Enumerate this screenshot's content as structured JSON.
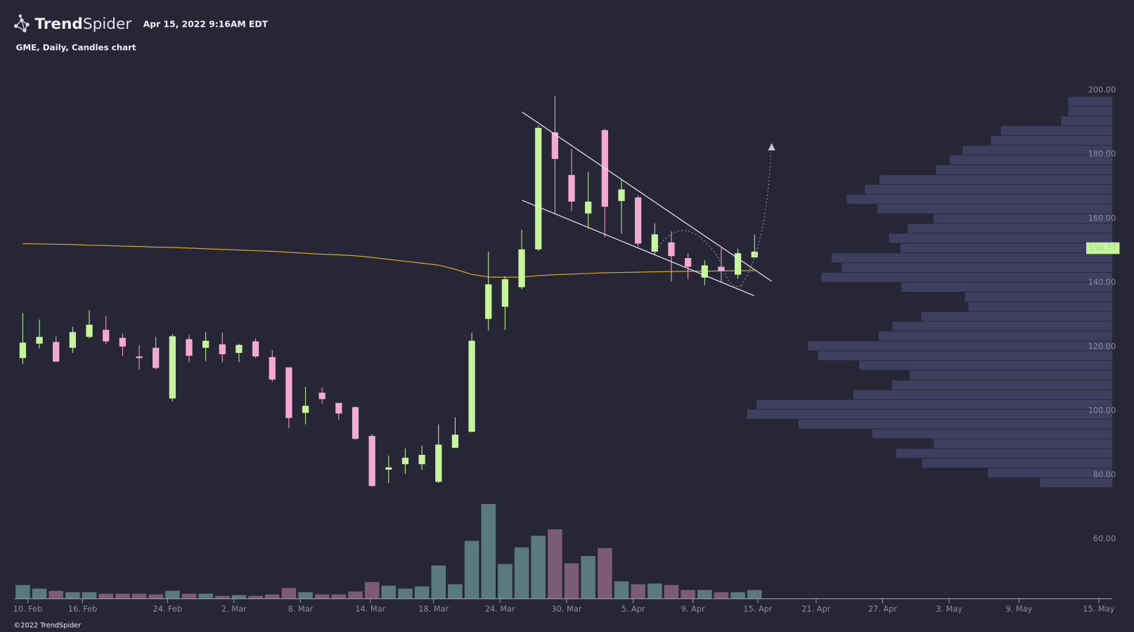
{
  "header": {
    "brand_bold": "Trend",
    "brand_light": "Spider",
    "timestamp": "Apr 15, 2022 9:16AM EDT",
    "chart_label": "GME, Daily, Candles chart",
    "copyright": "©2022 TrendSpider"
  },
  "chart_data": {
    "type": "candlestick",
    "open": [
      116.5,
      121.0,
      121.5,
      119.7,
      123.1,
      125.3,
      122.8,
      117.0,
      119.7,
      103.9,
      122.4,
      119.7,
      120.8,
      118.1,
      121.7,
      116.8,
      113.6,
      99.4,
      105.7,
      102.5,
      101.2,
      92.2,
      81.7,
      83.4,
      83.4,
      77.9,
      88.5,
      93.5,
      128.7,
      132.5,
      138.6,
      150.4,
      186.9,
      173.6,
      161.6,
      187.6,
      165.5,
      166.6,
      149.7,
      152.6,
      147.7,
      141.6,
      145.0,
      142.5,
      147.9
    ],
    "high": [
      130.5,
      128.5,
      123.3,
      126.2,
      131.4,
      129.6,
      124.2,
      120.6,
      123.1,
      124.0,
      123.7,
      124.6,
      124.4,
      121.0,
      122.6,
      119.0,
      113.6,
      107.5,
      107.3,
      102.5,
      101.4,
      92.8,
      86.1,
      88.3,
      89.2,
      95.8,
      98.0,
      124.4,
      149.7,
      142.0,
      156.5,
      189.0,
      198.2,
      181.7,
      174.5,
      188.0,
      172.0,
      167.3,
      158.5,
      156.0,
      149.2,
      147.0,
      150.8,
      150.6,
      155.1
    ],
    "low": [
      114.7,
      119.5,
      115.2,
      118.1,
      122.6,
      120.8,
      117.2,
      112.9,
      112.9,
      103.0,
      115.2,
      115.6,
      115.2,
      115.2,
      116.5,
      109.1,
      94.6,
      95.8,
      102.3,
      97.3,
      91.0,
      76.4,
      77.5,
      80.4,
      81.6,
      77.5,
      88.5,
      93.3,
      125.1,
      125.3,
      138.0,
      149.9,
      161.6,
      162.3,
      156.9,
      154.2,
      155.3,
      151.3,
      148.8,
      140.4,
      141.1,
      139.3,
      140.2,
      141.3,
      147.9
    ],
    "close": [
      121.3,
      123.1,
      115.4,
      124.6,
      126.9,
      121.7,
      120.1,
      116.5,
      113.4,
      123.3,
      117.2,
      121.9,
      117.7,
      120.6,
      117.0,
      109.8,
      97.8,
      101.6,
      103.7,
      99.2,
      91.3,
      76.6,
      82.4,
      85.4,
      86.3,
      89.5,
      92.6,
      121.9,
      139.5,
      141.1,
      150.4,
      188.3,
      178.6,
      165.3,
      165.3,
      163.7,
      169.1,
      152.2,
      155.1,
      148.3,
      145.0,
      145.4,
      143.6,
      149.2,
      149.7
    ],
    "volume": [
      19,
      14,
      11,
      9,
      9,
      7,
      7,
      7,
      6,
      11,
      7,
      7,
      4,
      5,
      4,
      6,
      15,
      9,
      6,
      6,
      10,
      23,
      18,
      14,
      17,
      46,
      20,
      80,
      131,
      48,
      71,
      87,
      96,
      49,
      59,
      70,
      24,
      20,
      21,
      19,
      12,
      12,
      9,
      9,
      12
    ],
    "moving_average": [
      152.2,
      152.1,
      152.0,
      151.9,
      151.7,
      151.6,
      151.4,
      151.3,
      151.1,
      151.0,
      150.8,
      150.6,
      150.4,
      150.2,
      150.0,
      149.8,
      149.5,
      149.2,
      148.9,
      148.7,
      148.4,
      147.9,
      147.3,
      146.7,
      146.1,
      145.5,
      144.2,
      142.6,
      141.8,
      141.7,
      141.8,
      142.2,
      142.5,
      142.7,
      142.9,
      143.1,
      143.2,
      143.3,
      143.4,
      143.5,
      143.6,
      143.6,
      143.7,
      143.7,
      143.8
    ],
    "volume_profile": {
      "bins": [
        76,
        79.05,
        82.1,
        85.15,
        88.2,
        91.25,
        94.3,
        97.35,
        100.4,
        103.45,
        106.5,
        109.55,
        112.6,
        115.65,
        118.7,
        121.75,
        124.8,
        127.85,
        130.9,
        133.95,
        137,
        140.05,
        143.1,
        146.15,
        149.2,
        152.25,
        155.3,
        158.35,
        161.4,
        164.45,
        167.5,
        170.55,
        173.6,
        176.65,
        179.7,
        182.75,
        185.8,
        188.85,
        191.9,
        194.95,
        198
      ],
      "values": [
        100,
        172,
        263,
        299,
        247,
        332,
        434,
        505,
        492,
        358,
        305,
        280,
        350,
        407,
        421,
        323,
        304,
        264,
        199,
        204,
        292,
        402,
        374,
        388,
        293,
        309,
        283,
        247,
        325,
        367,
        342,
        322,
        244,
        225,
        207,
        168,
        154,
        71,
        61,
        61
      ]
    },
    "last_price": 150.77,
    "up_color": "#c6f59b",
    "down_color": "#f4a9d0",
    "volume_up_color": "#5b7a7e",
    "volume_down_color": "#7c5b75",
    "ma_color": "#d4a72c",
    "profile_color": "#3e3e5e",
    "ylim": [
      41,
      205
    ],
    "yticks": [
      {
        "value": 60,
        "label": "60.00"
      },
      {
        "value": 80,
        "label": "80.00"
      },
      {
        "value": 100,
        "label": "100.00"
      },
      {
        "value": 120,
        "label": "120.00"
      },
      {
        "value": 140,
        "label": "140.00"
      },
      {
        "value": 160,
        "label": "160.00"
      },
      {
        "value": 180,
        "label": "180.00"
      },
      {
        "value": 200,
        "label": "200.00"
      }
    ],
    "xlim": [
      -0.5,
      65.6
    ],
    "xticks": [
      {
        "value": 0.3,
        "label": "10. Feb"
      },
      {
        "value": 3.6,
        "label": "16. Feb"
      },
      {
        "value": 8.7,
        "label": "24. Feb"
      },
      {
        "value": 12.7,
        "label": "2. Mar"
      },
      {
        "value": 16.7,
        "label": "8. Mar"
      },
      {
        "value": 20.9,
        "label": "14. Mar"
      },
      {
        "value": 24.7,
        "label": "18. Mar"
      },
      {
        "value": 28.7,
        "label": "24. Mar"
      },
      {
        "value": 32.7,
        "label": "30. Mar"
      },
      {
        "value": 36.7,
        "label": "5. Apr"
      },
      {
        "value": 40.3,
        "label": "9. Apr"
      },
      {
        "value": 44.2,
        "label": "15. Apr"
      },
      {
        "value": 47.7,
        "label": "21. Apr"
      },
      {
        "value": 51.7,
        "label": "27. Apr"
      },
      {
        "value": 55.7,
        "label": "3. May"
      },
      {
        "value": 59.9,
        "label": "9. May"
      },
      {
        "value": 64.7,
        "label": "15. May"
      }
    ]
  }
}
